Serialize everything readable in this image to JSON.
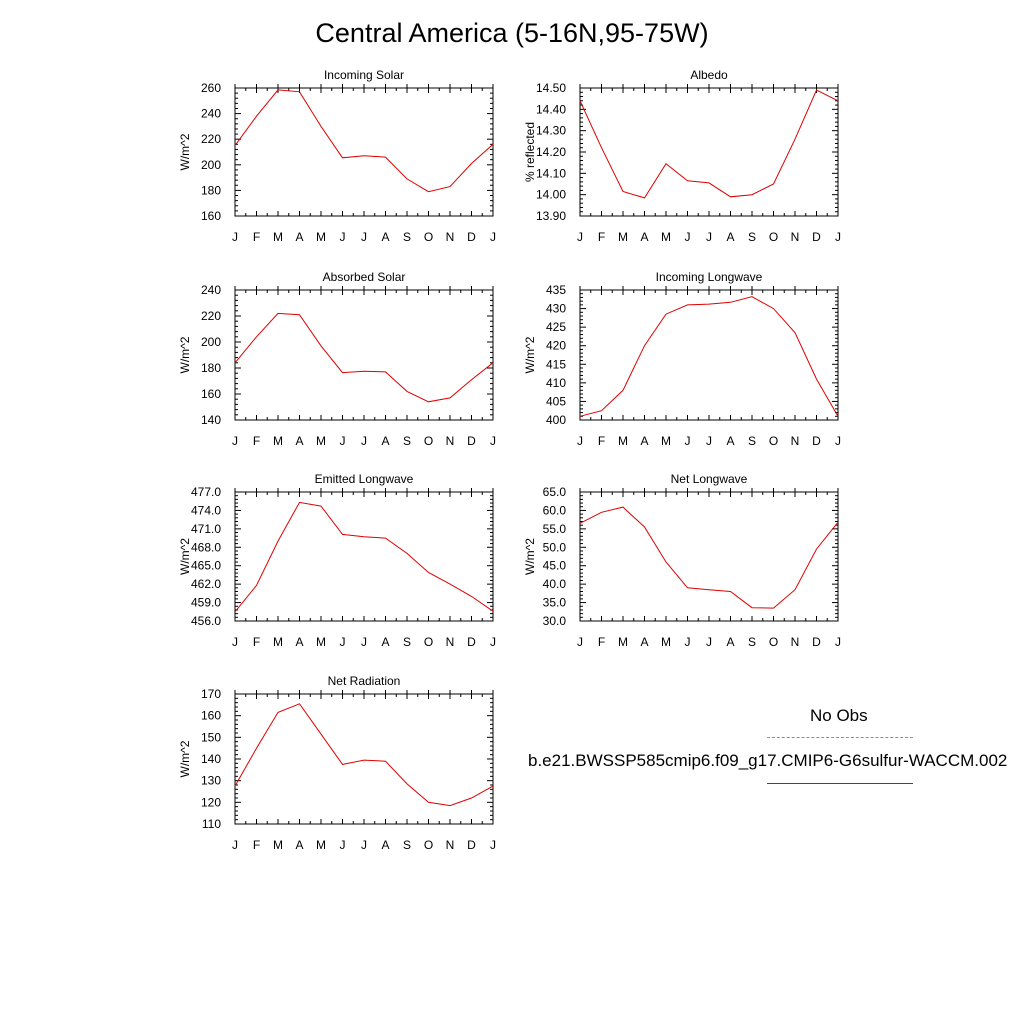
{
  "page_title": "Central America (5-16N,95-75W)",
  "chart_data": [
    {
      "type": "line",
      "title": "Incoming Solar",
      "ylabel": "W/m^2",
      "categories": [
        "J",
        "F",
        "M",
        "A",
        "M",
        "J",
        "J",
        "A",
        "S",
        "O",
        "N",
        "D",
        "J"
      ],
      "ylim": [
        160,
        260
      ],
      "yticks": [
        160,
        180,
        200,
        220,
        240,
        260
      ],
      "ytick_labels": [
        "160",
        "180",
        "200",
        "220",
        "240",
        "260"
      ],
      "series": [
        {
          "color": "#e00000",
          "values": [
            215,
            238,
            258.5,
            257,
            230,
            205.5,
            207,
            206,
            189,
            179,
            183,
            201,
            216
          ]
        }
      ]
    },
    {
      "type": "line",
      "title": "Albedo",
      "ylabel": "% reflected",
      "categories": [
        "J",
        "F",
        "M",
        "A",
        "M",
        "J",
        "J",
        "A",
        "S",
        "O",
        "N",
        "D",
        "J"
      ],
      "ylim": [
        13.9,
        14.5
      ],
      "yticks": [
        13.9,
        14.0,
        14.1,
        14.2,
        14.3,
        14.4,
        14.5
      ],
      "ytick_labels": [
        "13.90",
        "14.00",
        "14.10",
        "14.20",
        "14.30",
        "14.40",
        "14.50"
      ],
      "series": [
        {
          "color": "#e00000",
          "values": [
            14.44,
            14.22,
            14.015,
            13.985,
            14.145,
            14.065,
            14.055,
            13.99,
            14.0,
            14.05,
            14.26,
            14.49,
            14.44
          ]
        }
      ]
    },
    {
      "type": "line",
      "title": "Absorbed Solar",
      "ylabel": "W/m^2",
      "categories": [
        "J",
        "F",
        "M",
        "A",
        "M",
        "J",
        "J",
        "A",
        "S",
        "O",
        "N",
        "D",
        "J"
      ],
      "ylim": [
        140,
        240
      ],
      "yticks": [
        140,
        160,
        180,
        200,
        220,
        240
      ],
      "ytick_labels": [
        "140",
        "160",
        "180",
        "200",
        "220",
        "240"
      ],
      "series": [
        {
          "color": "#e00000",
          "values": [
            184,
            204,
            222,
            221,
            197,
            176.5,
            177.5,
            177,
            162,
            154,
            157,
            171,
            184
          ]
        }
      ]
    },
    {
      "type": "line",
      "title": "Incoming Longwave",
      "ylabel": "W/m^2",
      "categories": [
        "J",
        "F",
        "M",
        "A",
        "M",
        "J",
        "J",
        "A",
        "S",
        "O",
        "N",
        "D",
        "J"
      ],
      "ylim": [
        400,
        435
      ],
      "yticks": [
        400,
        405,
        410,
        415,
        420,
        425,
        430,
        435
      ],
      "ytick_labels": [
        "400",
        "405",
        "410",
        "415",
        "420",
        "425",
        "430",
        "435"
      ],
      "series": [
        {
          "color": "#e00000",
          "values": [
            401,
            402.5,
            408,
            420,
            428.5,
            431,
            431.2,
            431.7,
            433.2,
            430,
            423.5,
            411,
            401
          ]
        }
      ]
    },
    {
      "type": "line",
      "title": "Emitted Longwave",
      "ylabel": "W/m^2",
      "categories": [
        "J",
        "F",
        "M",
        "A",
        "M",
        "J",
        "J",
        "A",
        "S",
        "O",
        "N",
        "D",
        "J"
      ],
      "ylim": [
        456,
        477
      ],
      "yticks": [
        456,
        459,
        462,
        465,
        468,
        471,
        474,
        477
      ],
      "ytick_labels": [
        "456.0",
        "459.0",
        "462.0",
        "465.0",
        "468.0",
        "471.0",
        "474.0",
        "477.0"
      ],
      "series": [
        {
          "color": "#e00000",
          "values": [
            457.5,
            461.8,
            469,
            475.3,
            474.7,
            470.1,
            469.7,
            469.5,
            467,
            463.9,
            462,
            460,
            457.6
          ]
        }
      ]
    },
    {
      "type": "line",
      "title": "Net Longwave",
      "ylabel": "W/m^2",
      "categories": [
        "J",
        "F",
        "M",
        "A",
        "M",
        "J",
        "J",
        "A",
        "S",
        "O",
        "N",
        "D",
        "J"
      ],
      "ylim": [
        30,
        65
      ],
      "yticks": [
        30,
        35,
        40,
        45,
        50,
        55,
        60,
        65
      ],
      "ytick_labels": [
        "30.0",
        "35.0",
        "40.0",
        "45.0",
        "50.0",
        "55.0",
        "60.0",
        "65.0"
      ],
      "series": [
        {
          "color": "#e00000",
          "values": [
            56.5,
            59.5,
            60.9,
            55.5,
            46,
            39,
            38.5,
            38,
            33.6,
            33.5,
            38.5,
            49.5,
            56.8
          ]
        }
      ]
    },
    {
      "type": "line",
      "title": "Net Radiation",
      "ylabel": "W/m^2",
      "categories": [
        "J",
        "F",
        "M",
        "A",
        "M",
        "J",
        "J",
        "A",
        "S",
        "O",
        "N",
        "D",
        "J"
      ],
      "ylim": [
        110,
        170
      ],
      "yticks": [
        110,
        120,
        130,
        140,
        150,
        160,
        170
      ],
      "ytick_labels": [
        "110",
        "120",
        "130",
        "140",
        "150",
        "160",
        "170"
      ],
      "series": [
        {
          "color": "#e00000",
          "values": [
            127.5,
            145,
            161.5,
            165.5,
            151.5,
            137.5,
            139.5,
            139,
            128.5,
            120,
            118.5,
            122,
            127.5
          ]
        }
      ]
    }
  ],
  "legend": {
    "obs_label": "No Obs",
    "obs_color": "#8080ff",
    "model_label": "b.e21.BWSSP585cmip6.f09_g17.CMIP6-G6sulfur-WACCM.002",
    "model_color": "#e00000"
  }
}
